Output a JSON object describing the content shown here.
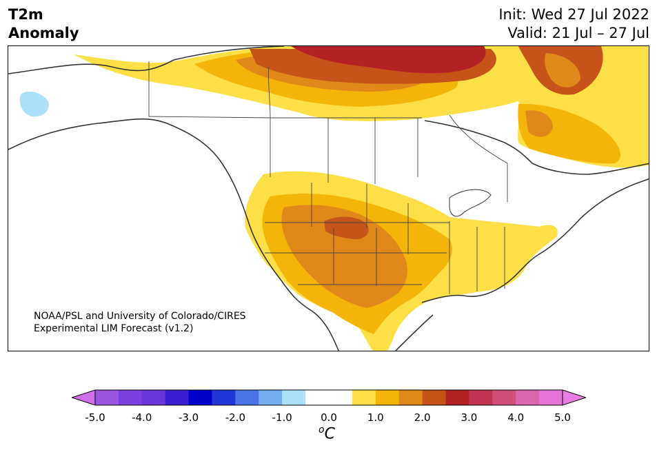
{
  "title": {
    "line1": "T2m",
    "line2": "Anomaly"
  },
  "dates": {
    "init": "Init: Wed 27 Jul 2022",
    "valid": "Valid: 21 Jul – 27 Jul"
  },
  "credit": {
    "line1": "NOAA/PSL and University of Colorado/CIRES",
    "line2": "Experimental LIM Forecast (v1.2)"
  },
  "colorbar": {
    "bins": [
      {
        "lo": -5.0,
        "hi": -4.5,
        "color": "#9c55e0"
      },
      {
        "lo": -4.5,
        "hi": -4.0,
        "color": "#7a3fdd"
      },
      {
        "lo": -4.0,
        "hi": -3.5,
        "color": "#6a35da"
      },
      {
        "lo": -3.5,
        "hi": -3.0,
        "color": "#3a1fd0"
      },
      {
        "lo": -3.0,
        "hi": -2.5,
        "color": "#0000cc"
      },
      {
        "lo": -2.5,
        "hi": -2.0,
        "color": "#2236d8"
      },
      {
        "lo": -2.0,
        "hi": -1.5,
        "color": "#4b73e6"
      },
      {
        "lo": -1.5,
        "hi": -1.0,
        "color": "#75aeee"
      },
      {
        "lo": -1.0,
        "hi": -0.5,
        "color": "#ade0fb"
      },
      {
        "lo": -0.5,
        "hi": 0.5,
        "color": "#ffffff"
      },
      {
        "lo": 0.5,
        "hi": 1.0,
        "color": "#fde047"
      },
      {
        "lo": 1.0,
        "hi": 1.5,
        "color": "#f3b50a"
      },
      {
        "lo": 1.5,
        "hi": 2.0,
        "color": "#e0891a"
      },
      {
        "lo": 2.0,
        "hi": 2.5,
        "color": "#c5531a"
      },
      {
        "lo": 2.5,
        "hi": 3.0,
        "color": "#b42125"
      },
      {
        "lo": 3.0,
        "hi": 3.5,
        "color": "#be3450"
      },
      {
        "lo": 3.5,
        "hi": 4.0,
        "color": "#cf4f78"
      },
      {
        "lo": 4.0,
        "hi": 4.5,
        "color": "#dc66ad"
      },
      {
        "lo": 4.5,
        "hi": 5.0,
        "color": "#e574d6"
      }
    ],
    "extend_low_color": "#d070e8",
    "extend_high_color": "#ea7ee0",
    "ticks": [
      "-5.0",
      "-4.0",
      "-3.0",
      "-2.0",
      "-1.0",
      "0.0",
      "1.0",
      "2.0",
      "3.0",
      "4.0",
      "5.0"
    ],
    "tick_values": [
      -5,
      -4,
      -3,
      -2,
      -1,
      0,
      1,
      2,
      3,
      4,
      5
    ],
    "unit_sup": "o",
    "unit": "C"
  }
}
